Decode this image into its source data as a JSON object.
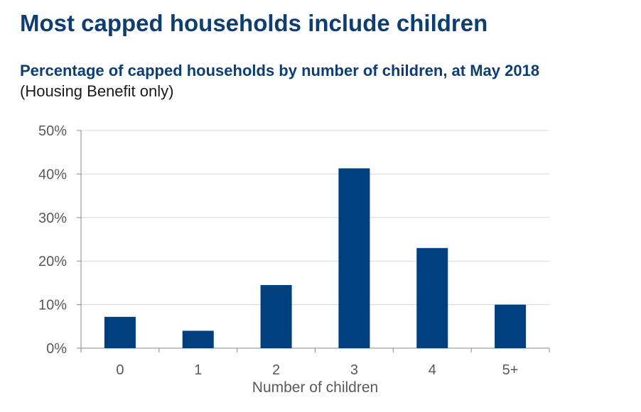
{
  "headline": "Most capped households include children",
  "chart_data": {
    "type": "bar",
    "title": "Percentage of capped households by number of children, at May 2018",
    "subtitle": "(Housing Benefit only)",
    "categories": [
      "0",
      "1",
      "2",
      "3",
      "4",
      "5+"
    ],
    "values": [
      7.2,
      4.0,
      14.5,
      41.3,
      23.0,
      10.0
    ],
    "xlabel": "Number of children",
    "ylabel": "",
    "ylim": [
      0,
      50
    ],
    "yticks": [
      0,
      10,
      20,
      30,
      40,
      50
    ],
    "ytick_labels": [
      "0%",
      "10%",
      "20%",
      "30%",
      "40%",
      "50%"
    ],
    "grid": true,
    "bar_color": "#003f7d"
  }
}
